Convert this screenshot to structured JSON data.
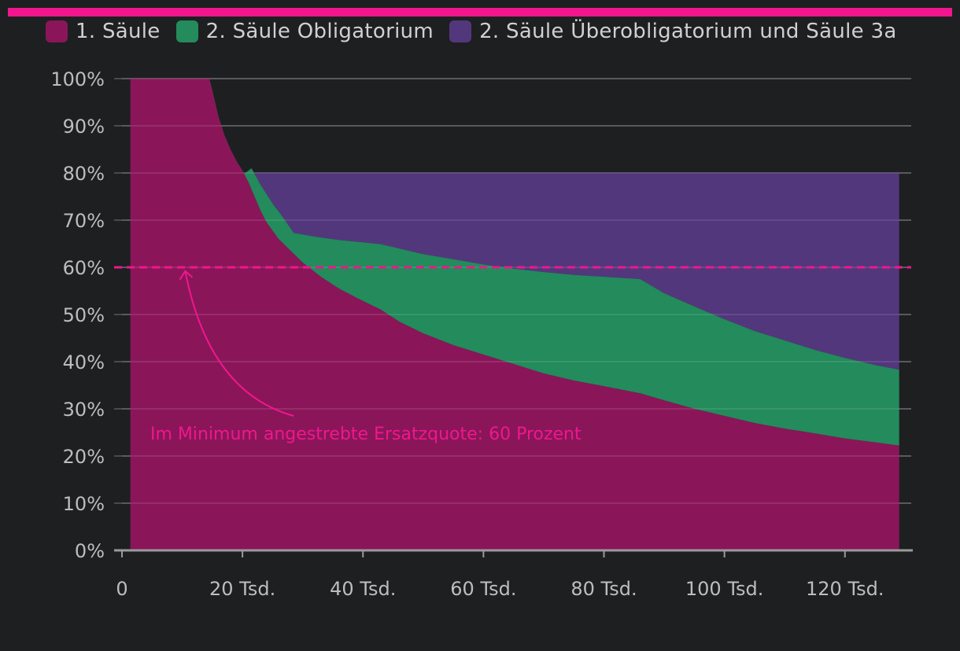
{
  "colors": {
    "background": "#1e1f21",
    "accent": "#f0168d",
    "saeule1": "#8a1659",
    "obligatorium": "#238b5c",
    "ueberobligatorium": "#53377d",
    "grid": "#58595c",
    "axis": "#9a9a9c"
  },
  "legend": [
    {
      "label": "1. Säule",
      "color": "#8a1659"
    },
    {
      "label": "2. Säule Obligatorium",
      "color": "#238b5c"
    },
    {
      "label": "2. Säule Überobligatorium und Säule 3a",
      "color": "#53377d"
    }
  ],
  "chart_data": {
    "type": "area",
    "stacked": true,
    "xlim": [
      0,
      131000
    ],
    "ylim": [
      0,
      100
    ],
    "xticks": [
      0,
      20000,
      40000,
      60000,
      80000,
      100000,
      120000
    ],
    "xtick_labels": [
      "0",
      "20 Tsd.",
      "40 Tsd.",
      "60 Tsd.",
      "80 Tsd.",
      "100 Tsd.",
      "120 Tsd."
    ],
    "yticks": [
      0,
      10,
      20,
      30,
      40,
      50,
      60,
      70,
      80,
      90,
      100
    ],
    "ytick_labels": [
      "0%",
      "10%",
      "20%",
      "30%",
      "40%",
      "50%",
      "60%",
      "70%",
      "80%",
      "90%",
      "100%"
    ],
    "grid": true,
    "series": [
      {
        "name": "1. Säule",
        "points": [
          [
            1400,
            100
          ],
          [
            14500,
            100
          ],
          [
            15000,
            97.5
          ],
          [
            16000,
            92
          ],
          [
            17000,
            88
          ],
          [
            18000,
            85
          ],
          [
            19000,
            82.5
          ],
          [
            20000,
            80.5
          ],
          [
            21000,
            78
          ],
          [
            22000,
            75
          ],
          [
            23000,
            72
          ],
          [
            24000,
            69.5
          ],
          [
            26000,
            66
          ],
          [
            28000,
            63.5
          ],
          [
            30000,
            61
          ],
          [
            33000,
            58
          ],
          [
            36000,
            55.5
          ],
          [
            39000,
            53.5
          ],
          [
            43000,
            51
          ],
          [
            46000,
            48.5
          ],
          [
            50000,
            46
          ],
          [
            55000,
            43.5
          ],
          [
            60000,
            41.5
          ],
          [
            65000,
            39.5
          ],
          [
            70000,
            37.5
          ],
          [
            75000,
            36
          ],
          [
            80000,
            34.8
          ],
          [
            86000,
            33.3
          ],
          [
            90000,
            31.8
          ],
          [
            95000,
            30
          ],
          [
            100000,
            28.5
          ],
          [
            105000,
            27
          ],
          [
            110000,
            25.8
          ],
          [
            115000,
            24.8
          ],
          [
            120000,
            23.7
          ],
          [
            125000,
            22.9
          ],
          [
            129000,
            22.2
          ]
        ]
      },
      {
        "name": "2. Säule Obligatorium",
        "points": [
          [
            20000,
            79.5
          ],
          [
            21500,
            81
          ],
          [
            23000,
            77.5
          ],
          [
            25000,
            73.5
          ],
          [
            26500,
            71
          ],
          [
            28500,
            67.3
          ],
          [
            32000,
            66.5
          ],
          [
            36000,
            65.8
          ],
          [
            40000,
            65.3
          ],
          [
            43000,
            64.9
          ],
          [
            46000,
            64
          ],
          [
            50000,
            62.8
          ],
          [
            55000,
            61.7
          ],
          [
            60000,
            60.6
          ],
          [
            65000,
            59.7
          ],
          [
            70000,
            59
          ],
          [
            75000,
            58.4
          ],
          [
            80000,
            58
          ],
          [
            86000,
            57.5
          ],
          [
            90000,
            54.5
          ],
          [
            95000,
            51.7
          ],
          [
            100000,
            49
          ],
          [
            105000,
            46.5
          ],
          [
            110000,
            44.5
          ],
          [
            115000,
            42.5
          ],
          [
            120000,
            40.8
          ],
          [
            125000,
            39.3
          ],
          [
            129000,
            38.3
          ]
        ]
      },
      {
        "name": "2. Säule Überobligatorium und Säule 3a",
        "points": [
          [
            21500,
            80
          ],
          [
            129000,
            80
          ]
        ]
      }
    ],
    "target_line": {
      "y": 60,
      "style": "dashed"
    },
    "annotation": {
      "text": "Im Minimum angestrebte Ersatzquote: 60 Prozent",
      "arrow_from": [
        28500,
        28.5
      ],
      "arrow_to": [
        10500,
        59.2
      ]
    }
  }
}
